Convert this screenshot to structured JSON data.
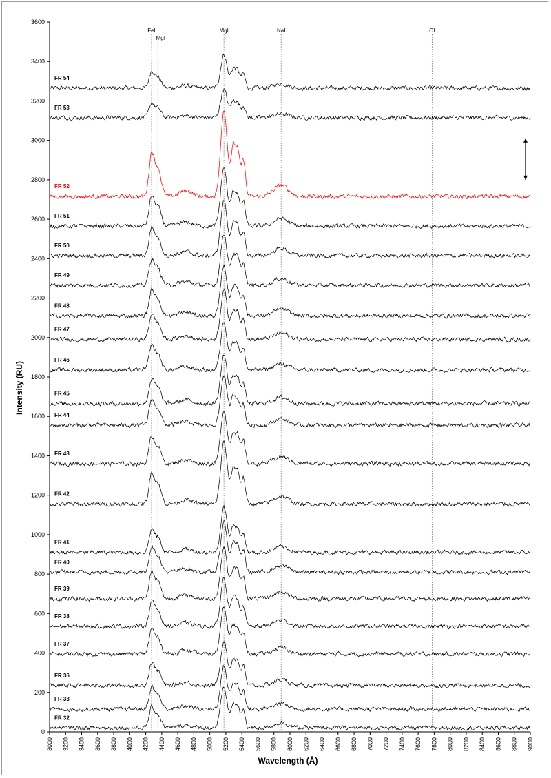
{
  "chart_data": {
    "type": "line",
    "title": "",
    "xlabel": "Wavelength (Å)",
    "ylabel": "Intensity (RU)",
    "xlim": [
      3000,
      9000
    ],
    "ylim": [
      0,
      3600
    ],
    "x_ticks": [
      3000,
      3200,
      3400,
      3600,
      3800,
      4000,
      4200,
      4400,
      4600,
      4800,
      5000,
      5200,
      5400,
      5600,
      5800,
      6000,
      6200,
      6400,
      6600,
      6800,
      7000,
      7200,
      7400,
      7600,
      7800,
      8000,
      8200,
      8400,
      8600,
      8800,
      9000
    ],
    "y_ticks": [
      0,
      200,
      400,
      600,
      800,
      1000,
      1200,
      1400,
      1600,
      1800,
      2000,
      2200,
      2400,
      2600,
      2800,
      3000,
      3200,
      3400,
      3600
    ],
    "grid": false,
    "reference_lines": [
      {
        "label": "FeI",
        "x": 4272
      },
      {
        "label": "MgI",
        "x": 4352
      },
      {
        "label": "MgI",
        "x": 5176
      },
      {
        "label": "NaI",
        "x": 5890
      },
      {
        "label": "OI",
        "x": 7774
      }
    ],
    "annotations": [
      {
        "type": "double-arrow",
        "x": 8940,
        "y_from": 2800,
        "y_to": 3010
      }
    ],
    "series": [
      {
        "name": "FR 54",
        "baseline": 3265,
        "peak_scale": 1.0,
        "color": "#000000"
      },
      {
        "name": "FR 53",
        "baseline": 3115,
        "peak_scale": 0.85,
        "color": "#000000"
      },
      {
        "name": "FR 52",
        "baseline": 2715,
        "peak_scale": 2.6,
        "color": "#ff0000"
      },
      {
        "name": "FR 51",
        "baseline": 2565,
        "peak_scale": 1.75,
        "color": "#000000"
      },
      {
        "name": "FR 50",
        "baseline": 2415,
        "peak_scale": 1.65,
        "color": "#000000"
      },
      {
        "name": "FR 49",
        "baseline": 2265,
        "peak_scale": 1.55,
        "color": "#000000"
      },
      {
        "name": "FR 48",
        "baseline": 2110,
        "peak_scale": 1.5,
        "color": "#000000"
      },
      {
        "name": "FR 47",
        "baseline": 1990,
        "peak_scale": 1.5,
        "color": "#000000"
      },
      {
        "name": "FR 46",
        "baseline": 1835,
        "peak_scale": 1.45,
        "color": "#000000"
      },
      {
        "name": "FR 45",
        "baseline": 1665,
        "peak_scale": 1.45,
        "color": "#000000"
      },
      {
        "name": "FR 44",
        "baseline": 1555,
        "peak_scale": 1.5,
        "color": "#000000"
      },
      {
        "name": "FR 43",
        "baseline": 1360,
        "peak_scale": 1.6,
        "color": "#000000"
      },
      {
        "name": "FR 42",
        "baseline": 1155,
        "peak_scale": 1.85,
        "color": "#000000"
      },
      {
        "name": "FR 41",
        "baseline": 910,
        "peak_scale": 1.35,
        "color": "#000000"
      },
      {
        "name": "FR 40",
        "baseline": 810,
        "peak_scale": 1.5,
        "color": "#000000"
      },
      {
        "name": "FR 39",
        "baseline": 675,
        "peak_scale": 1.55,
        "color": "#000000"
      },
      {
        "name": "FR 38",
        "baseline": 535,
        "peak_scale": 1.45,
        "color": "#000000"
      },
      {
        "name": "FR 37",
        "baseline": 395,
        "peak_scale": 1.45,
        "color": "#000000"
      },
      {
        "name": "FR 36",
        "baseline": 235,
        "peak_scale": 1.35,
        "color": "#000000"
      },
      {
        "name": "FR 33",
        "baseline": 115,
        "peak_scale": 1.3,
        "color": "#000000"
      },
      {
        "name": "FR 32",
        "baseline": 20,
        "peak_scale": 1.2,
        "color": "#000000"
      }
    ]
  }
}
